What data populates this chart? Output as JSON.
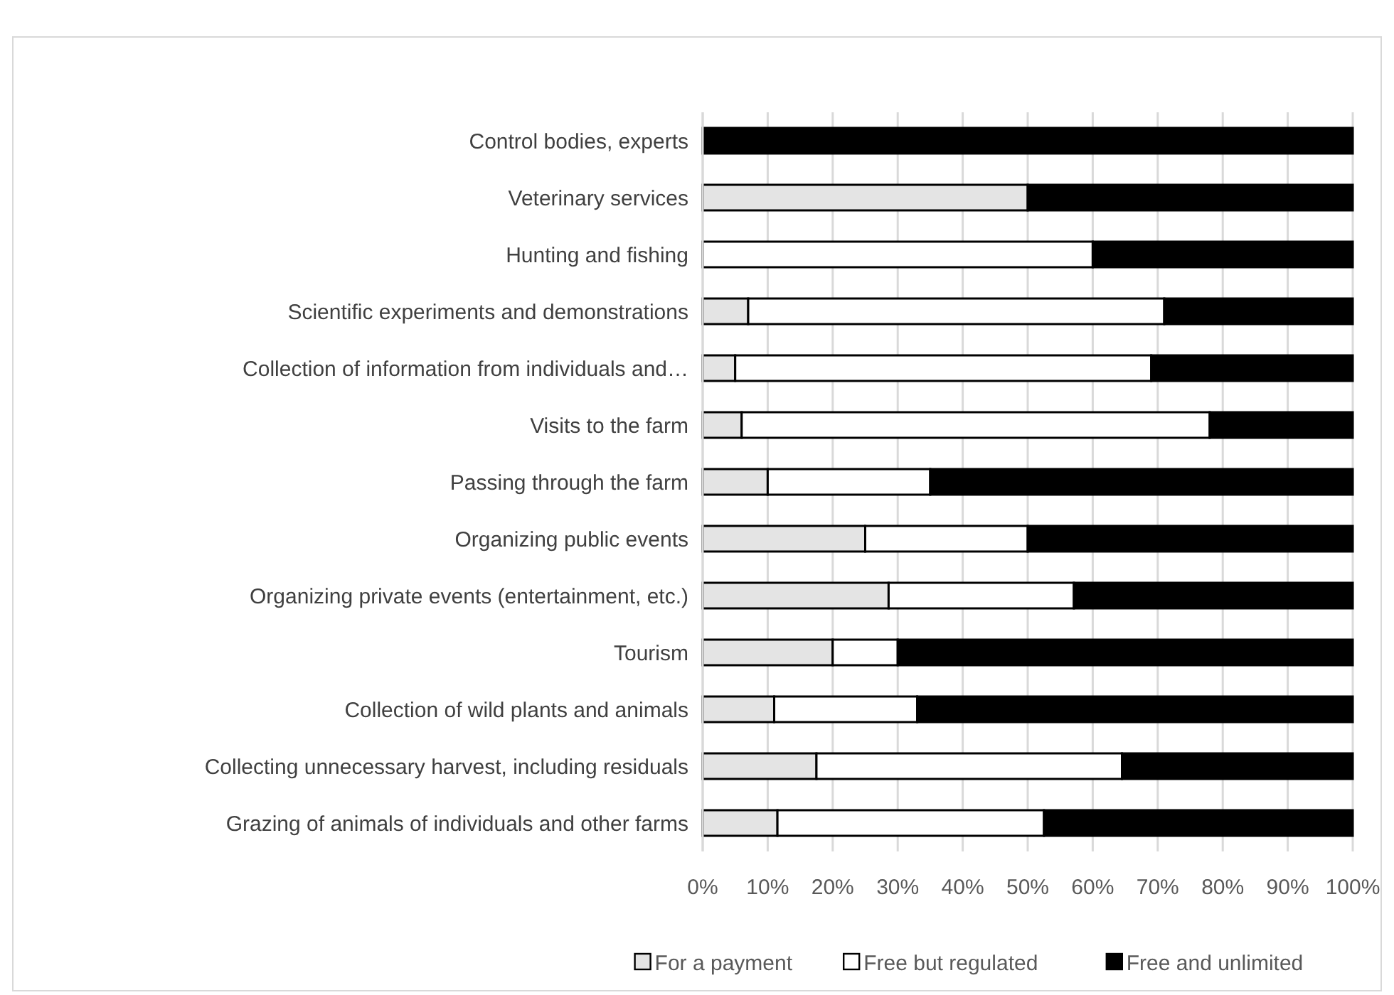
{
  "chart_data": {
    "type": "bar",
    "orientation": "horizontal",
    "stacked": true,
    "categories": [
      "Control bodies, experts",
      "Veterinary services",
      "Hunting and fishing",
      "Scientific experiments and demonstrations",
      "Collection of information from individuals and…",
      "Visits to the farm",
      "Passing through the farm",
      "Organizing public events",
      "Organizing private events (entertainment, etc.)",
      "Tourism",
      "Collection of wild plants and animals",
      "Collecting unnecessary harvest, including residuals",
      "Grazing of animals of individuals and other farms"
    ],
    "series": [
      {
        "name": "For a payment",
        "color": "#e4e4e4",
        "values": [
          0,
          50,
          0,
          7,
          5,
          6,
          10,
          25,
          28.6,
          20,
          11,
          17.5,
          11.5
        ]
      },
      {
        "name": "Free but regulated",
        "color": "#ffffff",
        "values": [
          0,
          0,
          60,
          64,
          64,
          72,
          25,
          25,
          28.5,
          10,
          22,
          47,
          41
        ]
      },
      {
        "name": "Free and unlimited",
        "color": "#000000",
        "values": [
          100,
          50,
          40,
          29,
          31,
          22,
          65,
          50,
          42.9,
          70,
          67,
          35.5,
          47.5
        ]
      }
    ],
    "xlim": [
      0,
      100
    ],
    "xticks": [
      {
        "value": 0,
        "label": "0%"
      },
      {
        "value": 10,
        "label": "10%"
      },
      {
        "value": 20,
        "label": "20%"
      },
      {
        "value": 30,
        "label": "30%"
      },
      {
        "value": 40,
        "label": "40%"
      },
      {
        "value": 50,
        "label": "50%"
      },
      {
        "value": 60,
        "label": "60%"
      },
      {
        "value": 70,
        "label": "70%"
      },
      {
        "value": 80,
        "label": "80%"
      },
      {
        "value": 90,
        "label": "90%"
      },
      {
        "value": 100,
        "label": "100%"
      }
    ],
    "grid": "x",
    "legend": "bottom"
  }
}
